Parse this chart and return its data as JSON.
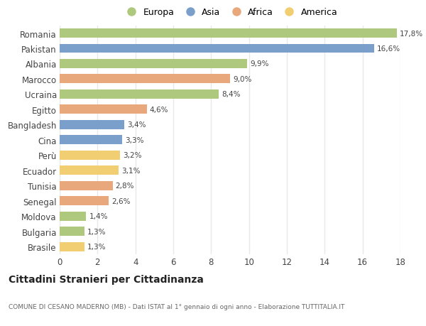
{
  "countries": [
    "Romania",
    "Pakistan",
    "Albania",
    "Marocco",
    "Ucraina",
    "Egitto",
    "Bangladesh",
    "Cina",
    "Perù",
    "Ecuador",
    "Tunisia",
    "Senegal",
    "Moldova",
    "Bulgaria",
    "Brasile"
  ],
  "values": [
    17.8,
    16.6,
    9.9,
    9.0,
    8.4,
    4.6,
    3.4,
    3.3,
    3.2,
    3.1,
    2.8,
    2.6,
    1.4,
    1.3,
    1.3
  ],
  "labels": [
    "17,8%",
    "16,6%",
    "9,9%",
    "9,0%",
    "8,4%",
    "4,6%",
    "3,4%",
    "3,3%",
    "3,2%",
    "3,1%",
    "2,8%",
    "2,6%",
    "1,4%",
    "1,3%",
    "1,3%"
  ],
  "continents": [
    "Europa",
    "Asia",
    "Europa",
    "Africa",
    "Europa",
    "Africa",
    "Asia",
    "Asia",
    "America",
    "America",
    "Africa",
    "Africa",
    "Europa",
    "Europa",
    "America"
  ],
  "continent_colors": {
    "Europa": "#aec97e",
    "Asia": "#7a9fcb",
    "Africa": "#e8a87c",
    "America": "#f2ce72"
  },
  "legend_order": [
    "Europa",
    "Asia",
    "Africa",
    "America"
  ],
  "title": "Cittadini Stranieri per Cittadinanza",
  "subtitle": "COMUNE DI CESANO MADERNO (MB) - Dati ISTAT al 1° gennaio di ogni anno - Elaborazione TUTTITALIA.IT",
  "xlim": [
    0,
    18
  ],
  "xticks": [
    0,
    2,
    4,
    6,
    8,
    10,
    12,
    14,
    16,
    18
  ],
  "background_color": "#ffffff",
  "grid_color": "#e8e8e8",
  "bar_height": 0.6
}
